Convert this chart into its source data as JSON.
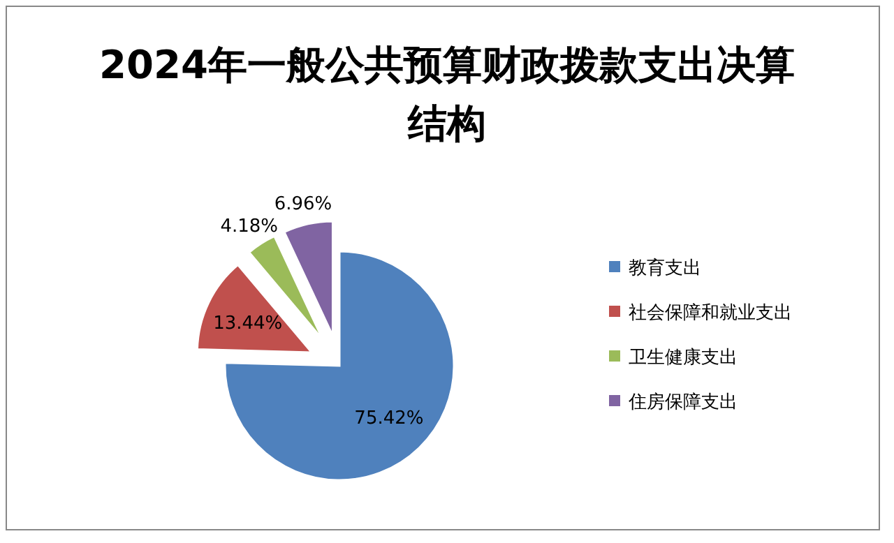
{
  "chart_data": {
    "type": "pie",
    "title": "2024年一般公共预算财政拨款支出决算结构",
    "categories": [
      "教育支出",
      "社会保障和就业支出",
      "卫生健康支出",
      "住房保障支出"
    ],
    "values": [
      75.42,
      13.44,
      4.18,
      6.96
    ],
    "value_labels": [
      "75.42%",
      "13.44%",
      "4.18%",
      "6.96%"
    ],
    "colors": [
      "#4f81bd",
      "#c0504d",
      "#9bbb59",
      "#8064a2"
    ],
    "legend": "right"
  }
}
